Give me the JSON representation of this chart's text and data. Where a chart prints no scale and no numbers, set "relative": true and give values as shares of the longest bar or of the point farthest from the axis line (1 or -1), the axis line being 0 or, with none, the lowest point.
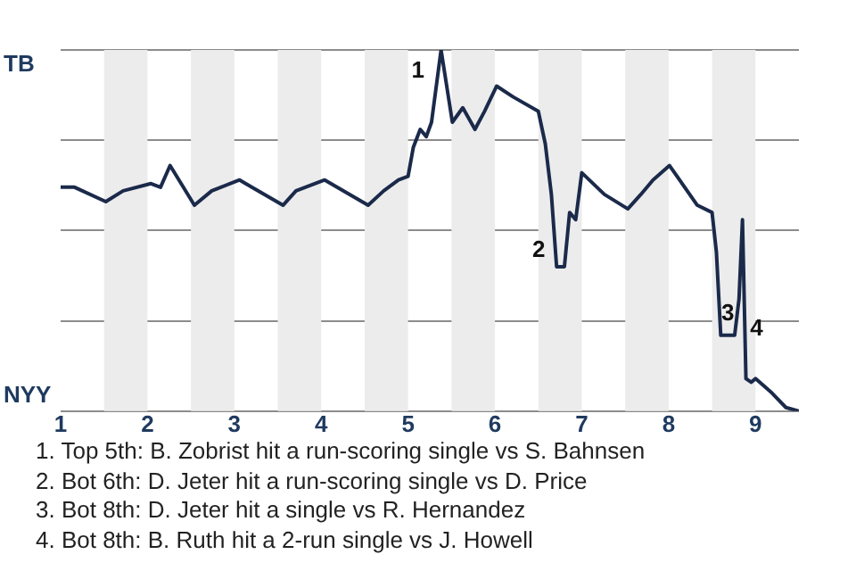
{
  "chart_data": {
    "type": "line",
    "relative": true,
    "grid": "y",
    "legend": false,
    "marker": "none",
    "line_style": "solid",
    "xlim": [
      1,
      9.5
    ],
    "xticks": [
      1,
      2,
      3,
      4,
      5,
      6,
      7,
      8,
      9
    ],
    "bands": [
      {
        "axis": "x",
        "from": 1.5,
        "to": 2,
        "color": "#ececec"
      },
      {
        "axis": "x",
        "from": 2.5,
        "to": 3,
        "color": "#ececec"
      },
      {
        "axis": "x",
        "from": 3.5,
        "to": 4,
        "color": "#ececec"
      },
      {
        "axis": "x",
        "from": 4.5,
        "to": 5,
        "color": "#ececec"
      },
      {
        "axis": "x",
        "from": 5.5,
        "to": 6,
        "color": "#ececec"
      },
      {
        "axis": "x",
        "from": 6.5,
        "to": 7,
        "color": "#ececec"
      },
      {
        "axis": "x",
        "from": 7.5,
        "to": 8,
        "color": "#ececec"
      },
      {
        "axis": "x",
        "from": 8.5,
        "to": 9,
        "color": "#ececec"
      }
    ],
    "series": [
      {
        "color": "#1b2a4a",
        "x": [
          1,
          1.16,
          1.52,
          1.72,
          2.04,
          2.15,
          2.26,
          2.54,
          2.74,
          3.06,
          3.2,
          3.56,
          3.71,
          4.04,
          4.54,
          4.72,
          4.89,
          5,
          5.06,
          5.14,
          5.21,
          5.27,
          5.38,
          5.51,
          5.63,
          5.77,
          5.88,
          6.02,
          6.21,
          6.5,
          6.58,
          6.65,
          6.71,
          6.8,
          6.86,
          6.93,
          7,
          7.26,
          7.53,
          7.68,
          7.82,
          8.01,
          8.33,
          8.5,
          8.55,
          8.6,
          8.76,
          8.81,
          8.85,
          8.89,
          8.95,
          9,
          9.19,
          9.35,
          9.5
        ],
        "values": [
          0.62,
          0.62,
          0.58,
          0.61,
          0.63,
          0.62,
          0.68,
          0.57,
          0.61,
          0.64,
          0.62,
          0.57,
          0.61,
          0.64,
          0.57,
          0.61,
          0.64,
          0.65,
          0.73,
          0.78,
          0.76,
          0.8,
          1,
          0.8,
          0.84,
          0.78,
          0.83,
          0.9,
          0.87,
          0.83,
          0.74,
          0.6,
          0.4,
          0.4,
          0.55,
          0.53,
          0.66,
          0.6,
          0.56,
          0.6,
          0.64,
          0.68,
          0.57,
          0.55,
          0.44,
          0.21,
          0.21,
          0.31,
          0.53,
          0.09,
          0.08,
          0.09,
          0.05,
          0.01,
          0
        ]
      }
    ],
    "annotations": [
      "TB",
      "NYY",
      {
        "text": "1",
        "x": 5.38,
        "y": 1
      },
      {
        "text": "2",
        "x": 6.71,
        "y": 0.4
      },
      {
        "text": "3",
        "x": 8.6,
        "y": 0.21
      },
      {
        "text": "4",
        "x": 8.89,
        "y": 0.09
      },
      "1. Top 5th: B. Zobrist hit a run-scoring single vs S. Bahnsen",
      "2. Bot 6th: D. Jeter hit a run-scoring single vs D. Price",
      "3. Bot 8th: D. Jeter hit a single vs R. Hernandez",
      "4. Bot 8th: B. Ruth hit a 2-run single vs J. Howell"
    ]
  }
}
